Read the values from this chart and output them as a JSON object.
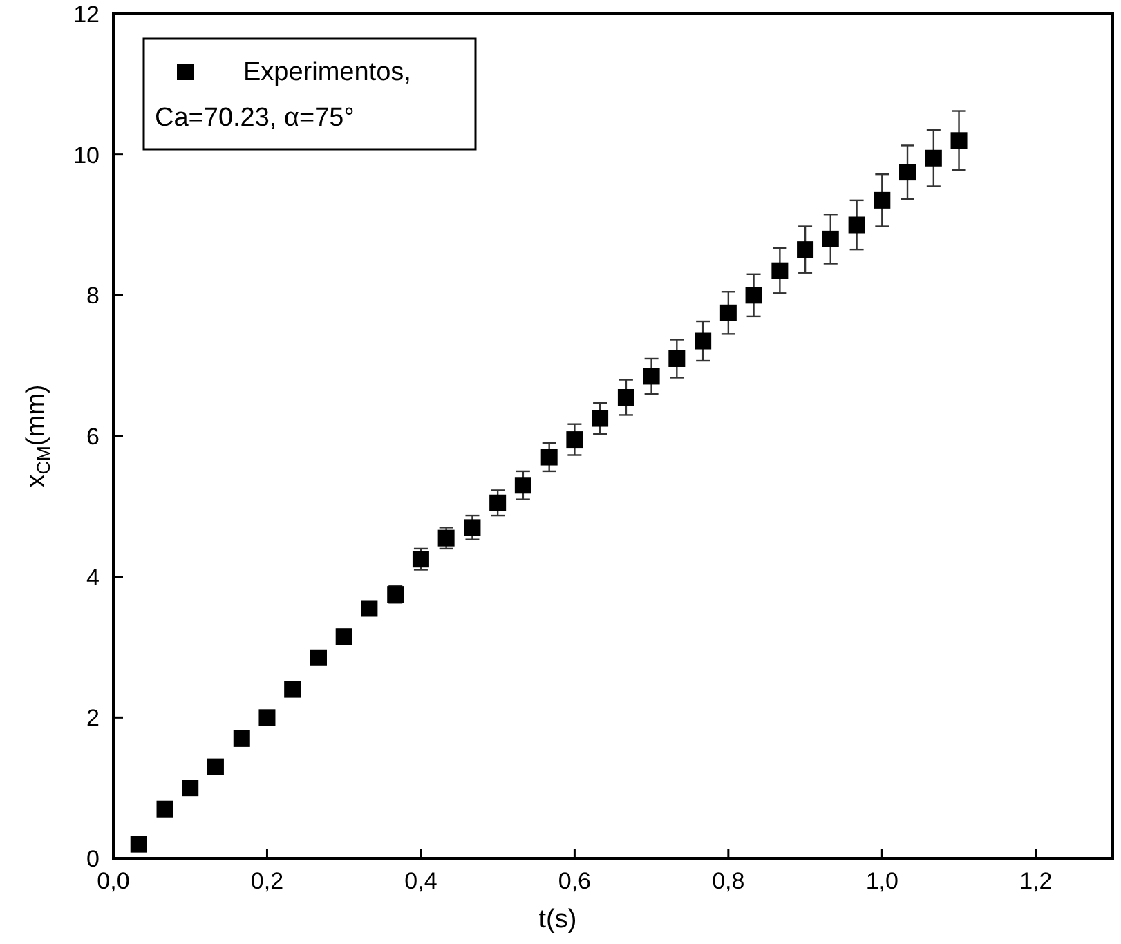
{
  "chart_data": {
    "type": "scatter",
    "xlabel": "t(s)",
    "ylabel": "x$_{CM}$(mm)",
    "xlim": [
      0,
      1.3
    ],
    "ylim": [
      0,
      12
    ],
    "xticks": [
      {
        "value": 0,
        "label": "0,0"
      },
      {
        "value": 0.2,
        "label": "0,2"
      },
      {
        "value": 0.4,
        "label": "0,4"
      },
      {
        "value": 0.6,
        "label": "0,6"
      },
      {
        "value": 0.8,
        "label": "0,8"
      },
      {
        "value": 1,
        "label": "1,0"
      },
      {
        "value": 1.2,
        "label": "1,2"
      }
    ],
    "yticks": [
      0,
      2,
      4,
      6,
      8,
      10,
      12
    ],
    "grid": false,
    "legend": "top left",
    "marker": "square",
    "series": [
      {
        "name": "Experimentos,\nCa=70.23, α=75°",
        "color": "#000000",
        "x": [
          0.033,
          0.067,
          0.1,
          0.133,
          0.167,
          0.2,
          0.233,
          0.267,
          0.3,
          0.333,
          0.367,
          0.4,
          0.433,
          0.467,
          0.5,
          0.533,
          0.567,
          0.6,
          0.633,
          0.667,
          0.7,
          0.733,
          0.767,
          0.8,
          0.833,
          0.867,
          0.9,
          0.933,
          0.967,
          1.0,
          1.033,
          1.067,
          1.1
        ],
        "values": [
          0.2,
          0.7,
          1.0,
          1.3,
          1.7,
          2.0,
          2.4,
          2.85,
          3.15,
          3.55,
          3.75,
          4.25,
          4.55,
          4.7,
          5.05,
          5.3,
          5.7,
          5.95,
          6.25,
          6.55,
          6.85,
          7.1,
          7.35,
          7.75,
          8.0,
          8.35,
          8.65,
          8.8,
          9.0,
          9.35,
          9.75,
          9.95,
          10.2
        ],
        "errors": [
          null,
          null,
          null,
          null,
          null,
          null,
          null,
          null,
          0.1,
          0.1,
          0.12,
          0.15,
          0.15,
          0.17,
          0.18,
          0.2,
          0.2,
          0.22,
          0.22,
          0.25,
          0.25,
          0.27,
          0.28,
          0.3,
          0.3,
          0.32,
          0.33,
          0.35,
          0.35,
          0.37,
          0.38,
          0.4,
          0.42
        ]
      }
    ]
  }
}
